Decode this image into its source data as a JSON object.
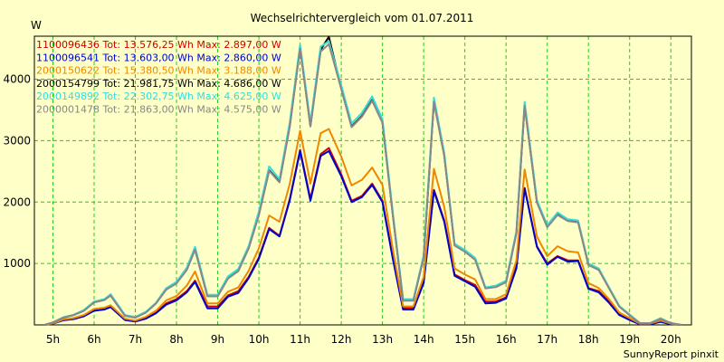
{
  "chart_data": {
    "type": "line",
    "title": "Wechselrichtervergleich vom 01.07.2011",
    "ylabel": "W",
    "footer": "SunnyReport pinxit",
    "ylim": [
      0,
      4700
    ],
    "xlim": [
      4.55,
      20.5
    ],
    "y_ticks": [
      1000,
      2000,
      3000,
      4000
    ],
    "x_ticks": [
      5,
      6,
      7,
      8,
      9,
      10,
      11,
      12,
      13,
      14,
      15,
      16,
      17,
      18,
      19,
      20
    ],
    "x_tick_labels": [
      "5h",
      "6h",
      "7h",
      "8h",
      "9h",
      "10h",
      "11h",
      "12h",
      "13h",
      "14h",
      "15h",
      "16h",
      "17h",
      "18h",
      "19h",
      "20h"
    ],
    "grid": true,
    "x": [
      4.8,
      5.0,
      5.25,
      5.5,
      5.75,
      6.0,
      6.25,
      6.4,
      6.75,
      7.0,
      7.25,
      7.5,
      7.75,
      8.0,
      8.25,
      8.45,
      8.75,
      9.0,
      9.25,
      9.5,
      9.75,
      10.0,
      10.25,
      10.5,
      10.75,
      11.0,
      11.25,
      11.5,
      11.7,
      12.0,
      12.25,
      12.5,
      12.75,
      13.0,
      13.25,
      13.5,
      13.75,
      14.0,
      14.25,
      14.5,
      14.75,
      15.0,
      15.25,
      15.5,
      15.75,
      16.0,
      16.25,
      16.45,
      16.75,
      17.0,
      17.25,
      17.5,
      17.75,
      18.0,
      18.25,
      18.5,
      18.75,
      19.0,
      19.25,
      19.5,
      19.75,
      20.0,
      20.25
    ],
    "series": [
      {
        "name": "1100096436",
        "color": "#cc0000",
        "legend": "1100096436 Tot: 13.576,25 Wh Max: 2.897,00 W",
        "values": [
          0,
          20,
          80,
          100,
          150,
          240,
          260,
          300,
          90,
          60,
          110,
          200,
          350,
          420,
          550,
          720,
          300,
          300,
          480,
          550,
          780,
          1100,
          1580,
          1450,
          2050,
          2850,
          2050,
          2780,
          2880,
          2450,
          2020,
          2100,
          2300,
          2020,
          1100,
          280,
          280,
          700,
          2200,
          1700,
          820,
          730,
          650,
          380,
          380,
          450,
          950,
          2230,
          1280,
          1000,
          1120,
          1050,
          1050,
          600,
          550,
          380,
          180,
          100,
          20,
          20,
          60,
          20,
          0
        ]
      },
      {
        "name": "1100096541",
        "color": "#0000cc",
        "legend": "1100096541 Tot: 13.603,00 Wh Max: 2.860,00 W",
        "values": [
          0,
          20,
          75,
          95,
          140,
          230,
          250,
          290,
          80,
          55,
          100,
          190,
          330,
          400,
          530,
          700,
          270,
          270,
          460,
          520,
          760,
          1080,
          1560,
          1440,
          2030,
          2830,
          2020,
          2750,
          2830,
          2420,
          2000,
          2080,
          2280,
          2000,
          1080,
          250,
          250,
          680,
          2180,
          1680,
          800,
          710,
          620,
          350,
          360,
          430,
          920,
          2220,
          1270,
          980,
          1110,
          1030,
          1040,
          590,
          530,
          360,
          160,
          80,
          10,
          10,
          50,
          10,
          0
        ]
      },
      {
        "name": "2000150622",
        "color": "#ee8800",
        "legend": "2000150622 Tot: 15.380,50 Wh Max: 3.188,00 W",
        "values": [
          0,
          25,
          90,
          110,
          160,
          260,
          280,
          320,
          100,
          70,
          130,
          230,
          400,
          470,
          640,
          870,
          350,
          350,
          540,
          610,
          880,
          1250,
          1780,
          1680,
          2300,
          3160,
          2300,
          3120,
          3190,
          2740,
          2270,
          2360,
          2560,
          2280,
          1240,
          300,
          300,
          780,
          2540,
          1920,
          920,
          820,
          740,
          420,
          420,
          500,
          1050,
          2530,
          1440,
          1120,
          1280,
          1200,
          1180,
          680,
          600,
          420,
          200,
          110,
          20,
          20,
          70,
          20,
          0
        ]
      },
      {
        "name": "2000154799",
        "color": "#000000",
        "legend": "2000154799 Tot: 21.981,75 Wh Max: 4.686,00 W",
        "values": [
          0,
          40,
          120,
          160,
          230,
          370,
          410,
          480,
          150,
          120,
          200,
          350,
          580,
          680,
          900,
          1230,
          470,
          470,
          760,
          880,
          1250,
          1800,
          2520,
          2330,
          3240,
          4520,
          3240,
          4480,
          4690,
          3850,
          3230,
          3400,
          3660,
          3300,
          1800,
          400,
          400,
          1100,
          3640,
          2760,
          1300,
          1200,
          1070,
          600,
          620,
          700,
          1500,
          3580,
          2000,
          1600,
          1800,
          1700,
          1680,
          980,
          900,
          600,
          300,
          160,
          30,
          30,
          100,
          30,
          0
        ]
      },
      {
        "name": "2000149892",
        "color": "#33dddd",
        "legend": "2000149892 Tot: 22.302,75 Wh Max: 4.625,00 W",
        "values": [
          0,
          40,
          125,
          165,
          240,
          380,
          420,
          500,
          160,
          130,
          210,
          360,
          600,
          700,
          930,
          1270,
          490,
          490,
          790,
          910,
          1280,
          1850,
          2580,
          2370,
          3300,
          4560,
          3290,
          4530,
          4620,
          3900,
          3280,
          3450,
          3720,
          3350,
          1840,
          420,
          420,
          1130,
          3700,
          2800,
          1320,
          1220,
          1090,
          610,
          640,
          720,
          1530,
          3630,
          2030,
          1620,
          1830,
          1720,
          1700,
          1000,
          920,
          610,
          310,
          170,
          30,
          30,
          110,
          30,
          0
        ]
      },
      {
        "name": "2000001478",
        "color": "#888888",
        "legend": "2000001478 Tot: 21.863,00 Wh Max: 4.575,00 W",
        "values": [
          0,
          40,
          118,
          158,
          228,
          365,
          405,
          478,
          148,
          118,
          198,
          348,
          575,
          675,
          895,
          1225,
          465,
          465,
          755,
          875,
          1245,
          1790,
          2510,
          2320,
          3230,
          4500,
          3230,
          4450,
          4570,
          3840,
          3220,
          3390,
          3650,
          3290,
          1790,
          395,
          395,
          1095,
          3630,
          2750,
          1290,
          1190,
          1060,
          595,
          615,
          695,
          1490,
          3570,
          1990,
          1590,
          1790,
          1690,
          1670,
          975,
          895,
          595,
          298,
          158,
          28,
          28,
          98,
          28,
          0
        ]
      }
    ]
  }
}
